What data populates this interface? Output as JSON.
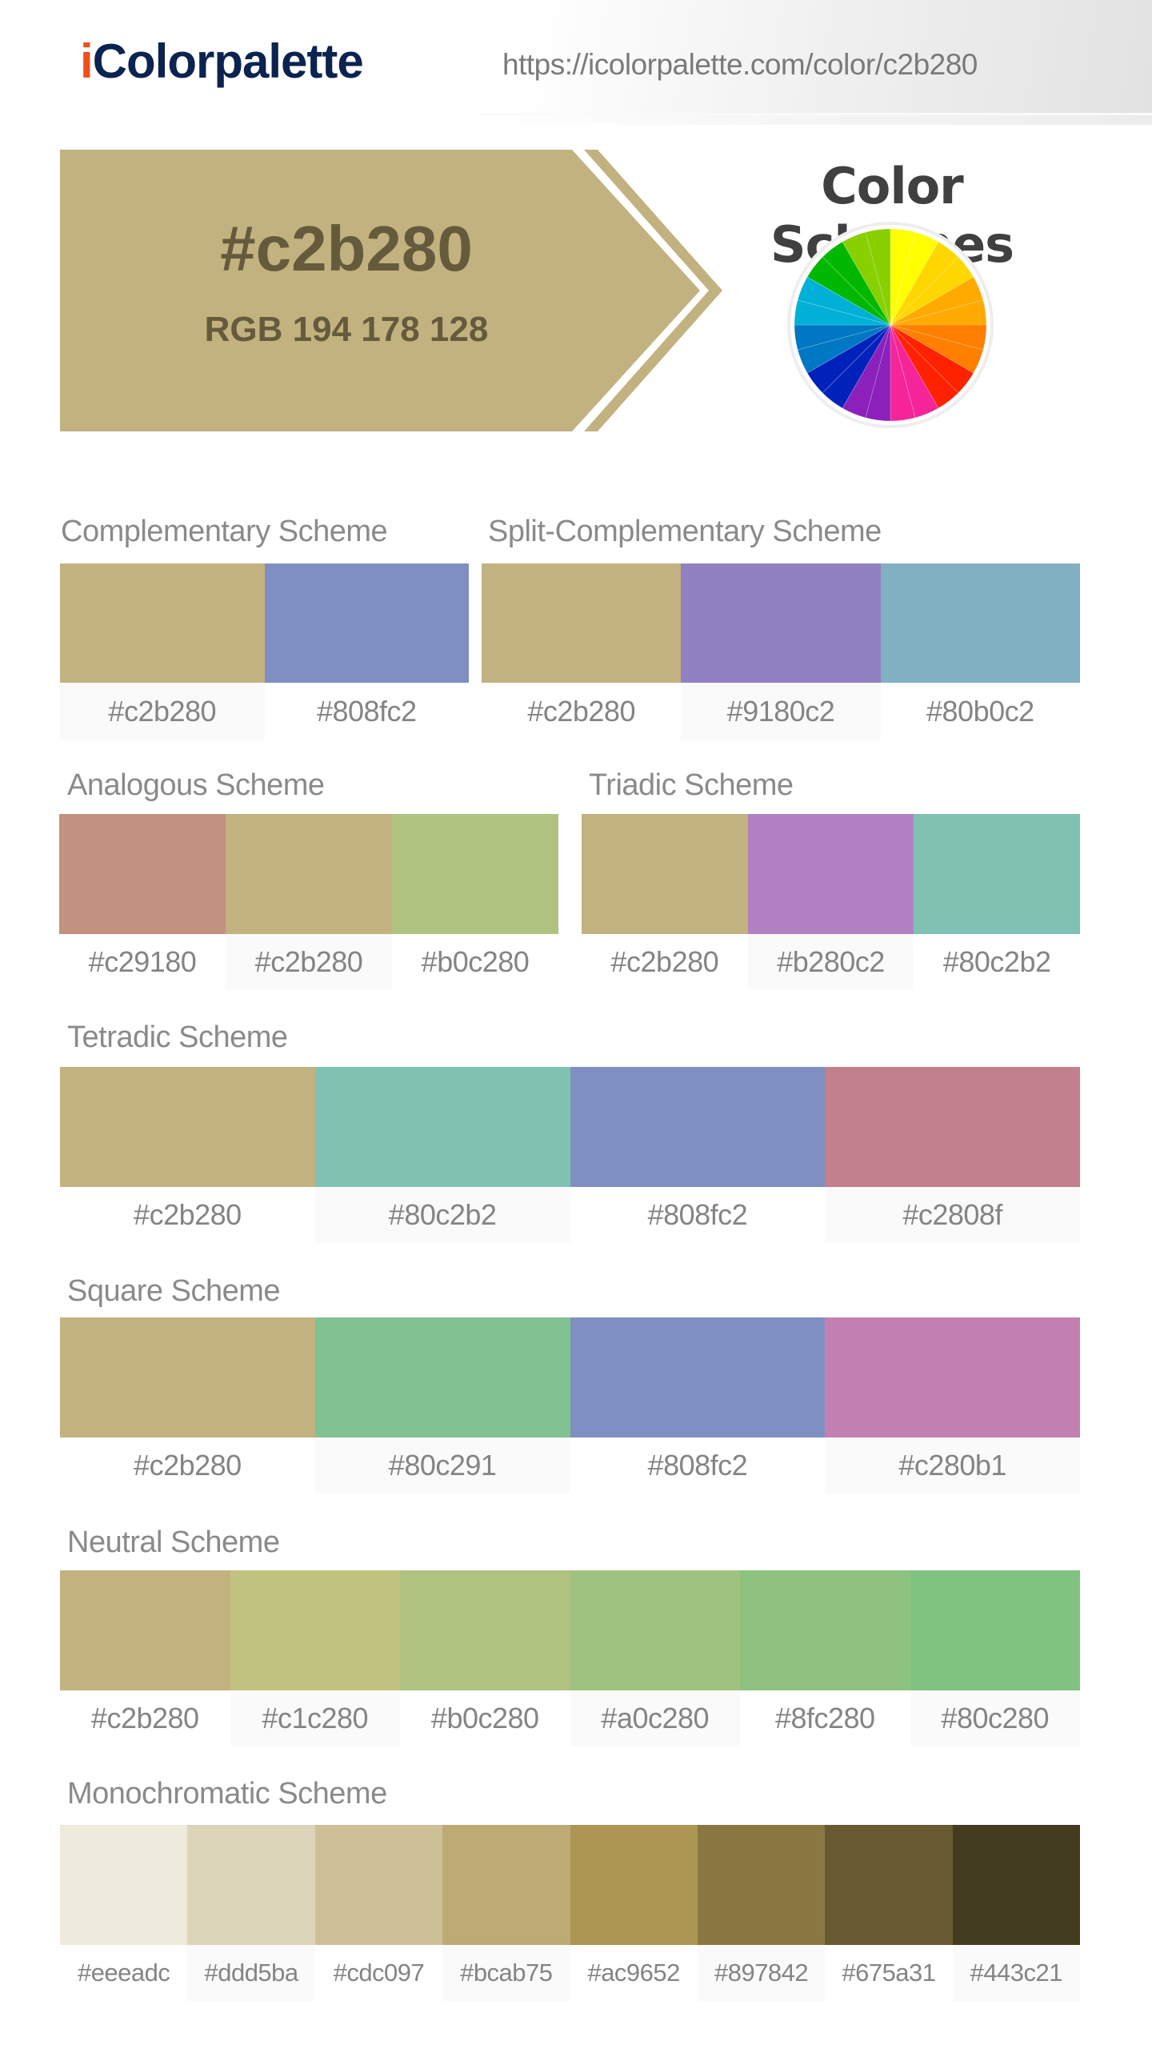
{
  "header": {
    "logo_i": "i",
    "logo_rest": "Colorpalette",
    "url": "https://icolorpalette.com/color/c2b280"
  },
  "hero": {
    "hex": "#c2b280",
    "rgb": "RGB 194 178 128",
    "color": "#c2b280",
    "text_color": "#655b3c"
  },
  "color_schemes_title": "Color Schemes",
  "color_wheel": {
    "segments": [
      "#ffff00",
      "#ffff00",
      "#ffd700",
      "#ffd700",
      "#ffaa00",
      "#ffaa00",
      "#ff7f00",
      "#ff7f00",
      "#ff2200",
      "#ff2200",
      "#f52599",
      "#f52599",
      "#8b20bb",
      "#8b20bb",
      "#0022bb",
      "#0022bb",
      "#0077c2",
      "#0077c2",
      "#00b0d6",
      "#00b0d6",
      "#00b800",
      "#00b800",
      "#88d000",
      "#88d000"
    ]
  },
  "schemes": {
    "complementary": {
      "title": "Complementary Scheme",
      "colors": [
        {
          "hex": "#c2b280",
          "label": "#c2b280"
        },
        {
          "hex": "#808fc2",
          "label": "#808fc2"
        }
      ]
    },
    "split_complementary": {
      "title": "Split-Complementary Scheme",
      "colors": [
        {
          "hex": "#c2b280",
          "label": "#c2b280"
        },
        {
          "hex": "#9180c2",
          "label": "#9180c2"
        },
        {
          "hex": "#80b0c2",
          "label": "#80b0c2"
        }
      ]
    },
    "analogous": {
      "title": "Analogous Scheme",
      "colors": [
        {
          "hex": "#c29180",
          "label": "#c29180"
        },
        {
          "hex": "#c2b280",
          "label": "#c2b280"
        },
        {
          "hex": "#b0c280",
          "label": "#b0c280"
        }
      ]
    },
    "triadic": {
      "title": "Triadic Scheme",
      "colors": [
        {
          "hex": "#c2b280",
          "label": "#c2b280"
        },
        {
          "hex": "#b280c2",
          "label": "#b280c2"
        },
        {
          "hex": "#80c2b2",
          "label": "#80c2b2"
        }
      ]
    },
    "tetradic": {
      "title": "Tetradic Scheme",
      "colors": [
        {
          "hex": "#c2b280",
          "label": "#c2b280"
        },
        {
          "hex": "#80c2b2",
          "label": "#80c2b2"
        },
        {
          "hex": "#808fc2",
          "label": "#808fc2"
        },
        {
          "hex": "#c2808f",
          "label": "#c2808f"
        }
      ]
    },
    "square": {
      "title": "Square Scheme",
      "colors": [
        {
          "hex": "#c2b280",
          "label": "#c2b280"
        },
        {
          "hex": "#80c291",
          "label": "#80c291"
        },
        {
          "hex": "#808fc2",
          "label": "#808fc2"
        },
        {
          "hex": "#c280b1",
          "label": "#c280b1"
        }
      ]
    },
    "neutral": {
      "title": "Neutral Scheme",
      "colors": [
        {
          "hex": "#c2b280",
          "label": "#c2b280"
        },
        {
          "hex": "#c1c280",
          "label": "#c1c280"
        },
        {
          "hex": "#b0c280",
          "label": "#b0c280"
        },
        {
          "hex": "#a0c280",
          "label": "#a0c280"
        },
        {
          "hex": "#8fc280",
          "label": "#8fc280"
        },
        {
          "hex": "#80c280",
          "label": "#80c280"
        }
      ]
    },
    "monochromatic": {
      "title": "Monochromatic Scheme",
      "colors": [
        {
          "hex": "#eeeadc",
          "label": "#eeeadc"
        },
        {
          "hex": "#ddd5ba",
          "label": "#ddd5ba"
        },
        {
          "hex": "#cdc097",
          "label": "#cdc097"
        },
        {
          "hex": "#bcab75",
          "label": "#bcab75"
        },
        {
          "hex": "#ac9652",
          "label": "#ac9652"
        },
        {
          "hex": "#897842",
          "label": "#897842"
        },
        {
          "hex": "#675a31",
          "label": "#675a31"
        },
        {
          "hex": "#443c21",
          "label": "#443c21"
        }
      ]
    }
  }
}
